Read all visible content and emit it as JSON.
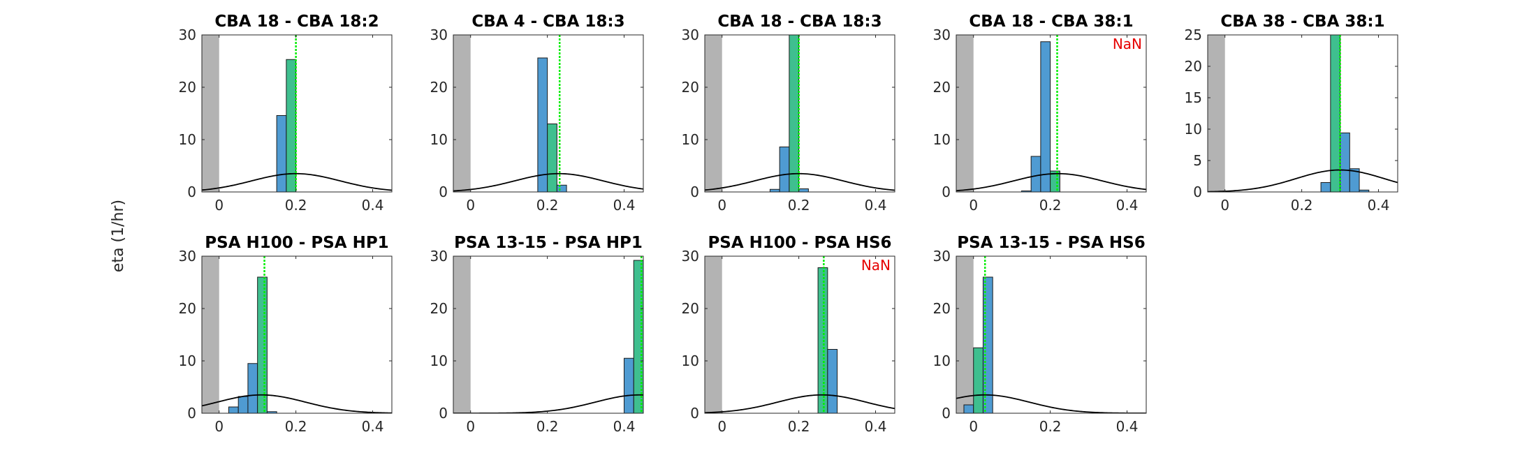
{
  "figure": {
    "ylabel": "eta (1/hr)"
  },
  "style": {
    "bar_fill": "#4f9bd2",
    "highlight_fill": "#3fbf8f",
    "bar_edge": "#1a1a1a",
    "marker_color": "#00ee00",
    "shade_color": "#b3b3b3",
    "curve_color": "#000000",
    "nan_color": "#e60000"
  },
  "chart_data": [
    {
      "type": "bar",
      "title": "CBA 18 - CBA 18:2",
      "xlim": [
        -0.045,
        0.45
      ],
      "ylim": [
        0,
        30
      ],
      "xticks": [
        0,
        0.2,
        0.4
      ],
      "xtick_labels": [
        "0",
        "0.2",
        "0.4"
      ],
      "yticks": [
        0,
        10,
        20,
        30
      ],
      "ytick_labels": [
        "0",
        "10",
        "20",
        "30"
      ],
      "shade_to": 0,
      "bin_width": 0.025,
      "bins": [
        {
          "x": 0.1625,
          "h": 14.6
        },
        {
          "x": 0.1875,
          "h": 25.3,
          "hl": true
        }
      ],
      "marker": 0.2,
      "curve": {
        "mu": 0.2,
        "peak": 3.5,
        "sigma": 0.115
      },
      "nan": ""
    },
    {
      "type": "bar",
      "title": "CBA 4 - CBA 18:3",
      "xlim": [
        -0.045,
        0.45
      ],
      "ylim": [
        0,
        30
      ],
      "xticks": [
        0,
        0.2,
        0.4
      ],
      "xtick_labels": [
        "0",
        "0.2",
        "0.4"
      ],
      "yticks": [
        0,
        10,
        20,
        30
      ],
      "ytick_labels": [
        "0",
        "10",
        "20",
        "30"
      ],
      "shade_to": 0,
      "bin_width": 0.025,
      "bins": [
        {
          "x": 0.1875,
          "h": 25.6
        },
        {
          "x": 0.2125,
          "h": 13.0,
          "hl": true
        },
        {
          "x": 0.2375,
          "h": 1.3
        }
      ],
      "marker": 0.232,
      "curve": {
        "mu": 0.23,
        "peak": 3.5,
        "sigma": 0.115
      },
      "nan": ""
    },
    {
      "type": "bar",
      "title": "CBA 18 - CBA 18:3",
      "xlim": [
        -0.045,
        0.45
      ],
      "ylim": [
        0,
        30
      ],
      "xticks": [
        0,
        0.2,
        0.4
      ],
      "xtick_labels": [
        "0",
        "0.2",
        "0.4"
      ],
      "yticks": [
        0,
        10,
        20,
        30
      ],
      "ytick_labels": [
        "0",
        "10",
        "20",
        "30"
      ],
      "shade_to": 0,
      "bin_width": 0.025,
      "bins": [
        {
          "x": 0.1375,
          "h": 0.5
        },
        {
          "x": 0.1625,
          "h": 8.6
        },
        {
          "x": 0.1875,
          "h": 30,
          "hl": true
        },
        {
          "x": 0.2125,
          "h": 0.6
        }
      ],
      "marker": 0.2,
      "curve": {
        "mu": 0.2,
        "peak": 3.5,
        "sigma": 0.115
      },
      "nan": ""
    },
    {
      "type": "bar",
      "title": "CBA 18 - CBA 38:1",
      "xlim": [
        -0.045,
        0.45
      ],
      "ylim": [
        0,
        30
      ],
      "xticks": [
        0,
        0.2,
        0.4
      ],
      "xtick_labels": [
        "0",
        "0.2",
        "0.4"
      ],
      "yticks": [
        0,
        10,
        20,
        30
      ],
      "ytick_labels": [
        "0",
        "10",
        "20",
        "30"
      ],
      "shade_to": 0,
      "bin_width": 0.025,
      "bins": [
        {
          "x": 0.1375,
          "h": 0.2
        },
        {
          "x": 0.1625,
          "h": 6.8
        },
        {
          "x": 0.1875,
          "h": 28.7
        },
        {
          "x": 0.2125,
          "h": 4.0,
          "hl": true
        }
      ],
      "marker": 0.218,
      "curve": {
        "mu": 0.22,
        "peak": 3.5,
        "sigma": 0.115
      },
      "nan": "NaN"
    },
    {
      "type": "bar",
      "title": "CBA 38 - CBA 38:1",
      "xlim": [
        -0.045,
        0.45
      ],
      "ylim": [
        0,
        25
      ],
      "xticks": [
        0,
        0.2,
        0.4
      ],
      "xtick_labels": [
        "0",
        "0.2",
        "0.4"
      ],
      "yticks": [
        0,
        5,
        10,
        15,
        20,
        25
      ],
      "ytick_labels": [
        "0",
        "5",
        "10",
        "15",
        "20",
        "25"
      ],
      "shade_to": 0,
      "bin_width": 0.025,
      "bins": [
        {
          "x": 0.2625,
          "h": 1.5
        },
        {
          "x": 0.2875,
          "h": 25,
          "hl": true
        },
        {
          "x": 0.3125,
          "h": 9.4
        },
        {
          "x": 0.3375,
          "h": 3.7
        },
        {
          "x": 0.3625,
          "h": 0.3
        }
      ],
      "marker": 0.3,
      "curve": {
        "mu": 0.3,
        "peak": 3.5,
        "sigma": 0.115
      },
      "nan": ""
    },
    {
      "type": "bar",
      "title": "PSA H100 - PSA HP1",
      "xlim": [
        -0.045,
        0.45
      ],
      "ylim": [
        0,
        30
      ],
      "xticks": [
        0,
        0.2,
        0.4
      ],
      "xtick_labels": [
        "0",
        "0.2",
        "0.4"
      ],
      "yticks": [
        0,
        10,
        20,
        30
      ],
      "ytick_labels": [
        "0",
        "10",
        "20",
        "30"
      ],
      "shade_to": 0,
      "bin_width": 0.025,
      "bins": [
        {
          "x": 0.0375,
          "h": 1.2
        },
        {
          "x": 0.0625,
          "h": 3.2
        },
        {
          "x": 0.0875,
          "h": 9.5
        },
        {
          "x": 0.1125,
          "h": 26.0,
          "hl": true
        },
        {
          "x": 0.1375,
          "h": 0.3
        }
      ],
      "marker": 0.118,
      "curve": {
        "mu": 0.11,
        "peak": 3.5,
        "sigma": 0.115
      },
      "nan": ""
    },
    {
      "type": "bar",
      "title": "PSA 13-15 - PSA HP1",
      "xlim": [
        -0.045,
        0.45
      ],
      "ylim": [
        0,
        30
      ],
      "xticks": [
        0,
        0.2,
        0.4
      ],
      "xtick_labels": [
        "0",
        "0.2",
        "0.4"
      ],
      "yticks": [
        0,
        10,
        20,
        30
      ],
      "ytick_labels": [
        "0",
        "10",
        "20",
        "30"
      ],
      "shade_to": 0,
      "bin_width": 0.025,
      "bins": [
        {
          "x": 0.4125,
          "h": 10.5
        },
        {
          "x": 0.4375,
          "h": 29.2,
          "hl": true
        }
      ],
      "marker": 0.445,
      "curve": {
        "mu": 0.44,
        "peak": 3.5,
        "sigma": 0.115
      },
      "nan": ""
    },
    {
      "type": "bar",
      "title": "PSA H100 - PSA HS6",
      "xlim": [
        -0.045,
        0.45
      ],
      "ylim": [
        0,
        30
      ],
      "xticks": [
        0,
        0.2,
        0.4
      ],
      "xtick_labels": [
        "0",
        "0.2",
        "0.4"
      ],
      "yticks": [
        0,
        10,
        20,
        30
      ],
      "ytick_labels": [
        "0",
        "10",
        "20",
        "30"
      ],
      "shade_to": 0,
      "bin_width": 0.025,
      "bins": [
        {
          "x": 0.2625,
          "h": 27.8,
          "hl": true
        },
        {
          "x": 0.2875,
          "h": 12.2
        }
      ],
      "marker": 0.265,
      "curve": {
        "mu": 0.26,
        "peak": 3.5,
        "sigma": 0.115
      },
      "nan": "NaN"
    },
    {
      "type": "bar",
      "title": "PSA 13-15 - PSA HS6",
      "xlim": [
        -0.045,
        0.45
      ],
      "ylim": [
        0,
        30
      ],
      "xticks": [
        0,
        0.2,
        0.4
      ],
      "xtick_labels": [
        "0",
        "0.2",
        "0.4"
      ],
      "yticks": [
        0,
        10,
        20,
        30
      ],
      "ytick_labels": [
        "0",
        "10",
        "20",
        "30"
      ],
      "shade_to": 0,
      "bin_width": 0.025,
      "bins": [
        {
          "x": -0.0125,
          "h": 1.6
        },
        {
          "x": 0.0125,
          "h": 12.5,
          "hl": true
        },
        {
          "x": 0.0375,
          "h": 26.0
        }
      ],
      "marker": 0.03,
      "curve": {
        "mu": 0.03,
        "peak": 3.5,
        "sigma": 0.115
      },
      "nan": ""
    }
  ]
}
